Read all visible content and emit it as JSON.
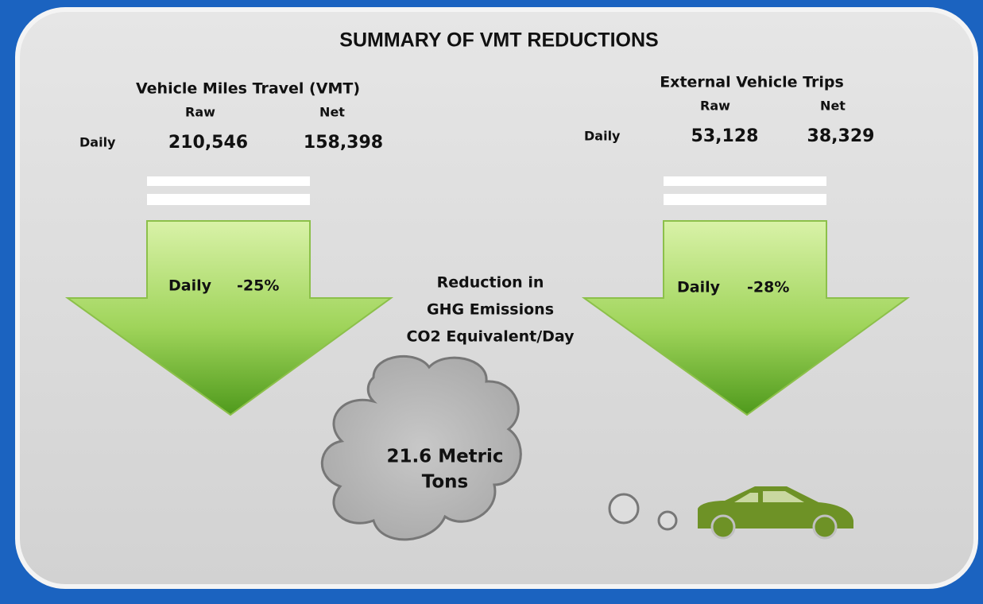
{
  "title": "SUMMARY OF VMT REDUCTIONS",
  "left": {
    "heading": "Vehicle Miles Travel (VMT)",
    "raw_label": "Raw",
    "net_label": "Net",
    "row_label": "Daily",
    "raw": "210,546",
    "net": "158,398",
    "arrow_label": "Daily",
    "arrow_value": "-25%"
  },
  "right": {
    "heading": "External Vehicle Trips",
    "raw_label": "Raw",
    "net_label": "Net",
    "row_label": "Daily",
    "raw": "53,128",
    "net": "38,329",
    "arrow_label": "Daily",
    "arrow_value": "-28%"
  },
  "center": {
    "lines": [
      "Reduction in",
      "GHG Emissions",
      "CO2 Equivalent/Day"
    ],
    "cloud_lines": [
      "21.6 Metric",
      "Tons"
    ]
  }
}
